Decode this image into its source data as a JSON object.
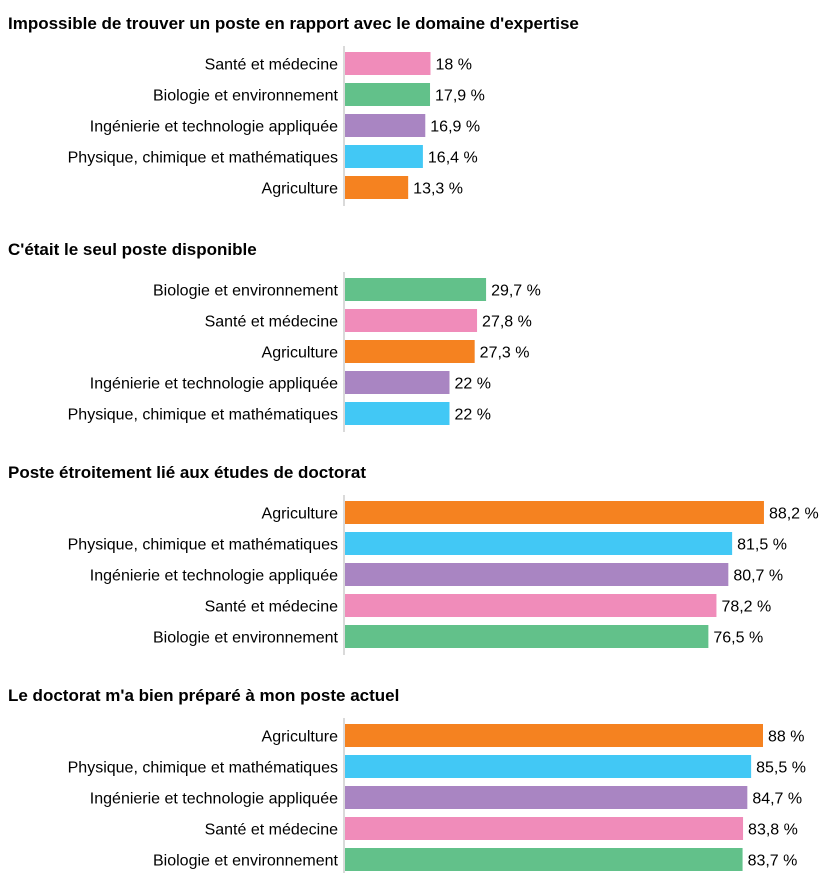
{
  "chart_data": [
    {
      "type": "bar",
      "orientation": "horizontal",
      "title": "Impossible de trouver un poste en rapport avec le domaine d'expertise",
      "categories": [
        "Santé et médecine",
        "Biologie et environnement",
        "Ingénierie et technologie appliquée",
        "Physique, chimique et mathématiques",
        "Agriculture"
      ],
      "values": [
        18,
        17.9,
        16.9,
        16.4,
        13.3
      ],
      "labels": [
        "18 %",
        "17,9 %",
        "16,9 %",
        "16,4 %",
        "13,3 %"
      ],
      "colors": [
        "#f08cba",
        "#62c18a",
        "#a985c2",
        "#42c8f5",
        "#f58220"
      ],
      "xlim": [
        0,
        100
      ]
    },
    {
      "type": "bar",
      "orientation": "horizontal",
      "title": "C'était le seul poste disponible",
      "categories": [
        "Biologie et environnement",
        "Santé et médecine",
        "Agriculture",
        "Ingénierie et technologie appliquée",
        "Physique, chimique et mathématiques"
      ],
      "values": [
        29.7,
        27.8,
        27.3,
        22,
        22
      ],
      "labels": [
        "29,7 %",
        "27,8 %",
        "27,3 %",
        "22 %",
        "22 %"
      ],
      "colors": [
        "#62c18a",
        "#f08cba",
        "#f58220",
        "#a985c2",
        "#42c8f5"
      ],
      "xlim": [
        0,
        100
      ]
    },
    {
      "type": "bar",
      "orientation": "horizontal",
      "title": "Poste étroitement lié aux études de doctorat",
      "categories": [
        "Agriculture",
        "Physique, chimique et mathématiques",
        "Ingénierie et technologie appliquée",
        "Santé et médecine",
        "Biologie et environnement"
      ],
      "values": [
        88.2,
        81.5,
        80.7,
        78.2,
        76.5
      ],
      "labels": [
        "88,2 %",
        "81,5 %",
        "80,7 %",
        "78,2 %",
        "76,5 %"
      ],
      "colors": [
        "#f58220",
        "#42c8f5",
        "#a985c2",
        "#f08cba",
        "#62c18a"
      ],
      "xlim": [
        0,
        100
      ]
    },
    {
      "type": "bar",
      "orientation": "horizontal",
      "title": "Le doctorat m'a bien préparé à mon poste actuel",
      "categories": [
        "Agriculture",
        "Physique, chimique et mathématiques",
        "Ingénierie et technologie appliquée",
        "Santé et médecine",
        "Biologie et environnement"
      ],
      "values": [
        88,
        85.5,
        84.7,
        83.8,
        83.7
      ],
      "labels": [
        "88 %",
        "85,5 %",
        "84,7 %",
        "83,8 %",
        "83,7 %"
      ],
      "colors": [
        "#f58220",
        "#42c8f5",
        "#a985c2",
        "#f08cba",
        "#62c18a"
      ],
      "xlim": [
        0,
        100
      ]
    }
  ]
}
